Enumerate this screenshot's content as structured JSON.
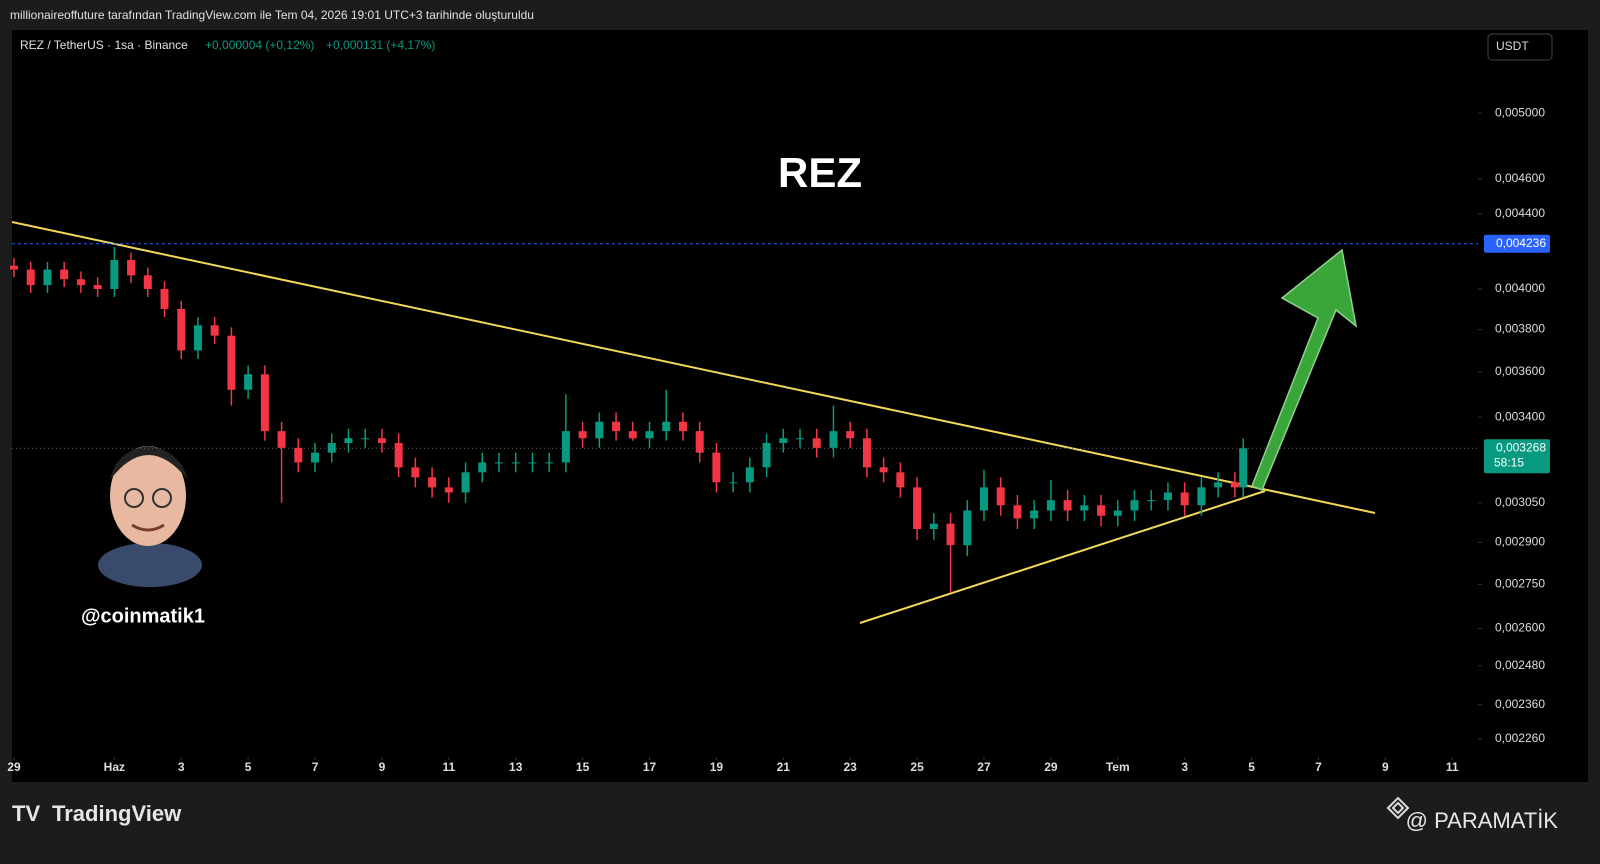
{
  "header": {
    "caption": "millionaireoffuture tarafından TradingView.com ile Tem 04, 2026 19:01 UTC+3 tarihinde oluşturuldu"
  },
  "footer": {
    "brand": "TradingView",
    "watermark": "@ PARAMATİK"
  },
  "chart_data": {
    "type": "candlestick",
    "symbol": "REZ / TetherUS · 1sa · Binance",
    "change_1": "+0,000004 (+0,12%)",
    "change_2": "+0,000131 (+4,17%)",
    "currency": "USDT",
    "title": "REZ",
    "author": "@coinmatik1",
    "log_scale": true,
    "up_color": "#089981",
    "down_color": "#f23645",
    "x": [
      0,
      0.5,
      1,
      1.5,
      2,
      2.5,
      3,
      3.5,
      4,
      4.5,
      5,
      5.5,
      6,
      6.5,
      7,
      7.5,
      8,
      8.5,
      9,
      9.5,
      10,
      10.5,
      11,
      11.5,
      12,
      12.5,
      13,
      13.5,
      14,
      14.5,
      15,
      15.5,
      16,
      16.5,
      17,
      17.5,
      18,
      18.5,
      19,
      19.5,
      20,
      20.5,
      21,
      21.5,
      22,
      22.5,
      23,
      23.5,
      24,
      24.5,
      25,
      25.5,
      26,
      26.5,
      27,
      27.5,
      28,
      28.5,
      29,
      29.5,
      30,
      30.5,
      31,
      31.5,
      32,
      32.5,
      33,
      33.5,
      34,
      34.5,
      35,
      35.5,
      36,
      36.5,
      36.75
    ],
    "open": [
      0.00412,
      0.0041,
      0.00402,
      0.0041,
      0.00405,
      0.00402,
      0.004,
      0.00415,
      0.00407,
      0.004,
      0.0039,
      0.0037,
      0.00382,
      0.00377,
      0.00352,
      0.00359,
      0.00334,
      0.00327,
      0.00321,
      0.00325,
      0.00329,
      0.00331,
      0.00331,
      0.00329,
      0.00319,
      0.00315,
      0.00311,
      0.00309,
      0.00317,
      0.00321,
      0.00321,
      0.00321,
      0.00321,
      0.00321,
      0.00334,
      0.00331,
      0.00338,
      0.00334,
      0.00331,
      0.00334,
      0.00338,
      0.00334,
      0.00325,
      0.00313,
      0.00313,
      0.00319,
      0.00329,
      0.00331,
      0.00331,
      0.00327,
      0.00334,
      0.00331,
      0.00319,
      0.00317,
      0.00311,
      0.00295,
      0.00297,
      0.00289,
      0.00302,
      0.00311,
      0.00304,
      0.00299,
      0.00302,
      0.00306,
      0.00302,
      0.00304,
      0.003,
      0.00302,
      0.00306,
      0.00306,
      0.00309,
      0.00304,
      0.00311,
      0.00313,
      0.00311
    ],
    "high": [
      0.00416,
      0.00414,
      0.00414,
      0.00414,
      0.00409,
      0.00406,
      0.00422,
      0.00419,
      0.00411,
      0.00404,
      0.00394,
      0.00386,
      0.00386,
      0.00381,
      0.00363,
      0.00363,
      0.00338,
      0.00331,
      0.00329,
      0.00333,
      0.00335,
      0.00335,
      0.00335,
      0.00333,
      0.00323,
      0.00319,
      0.00315,
      0.00321,
      0.00325,
      0.00325,
      0.00325,
      0.00325,
      0.00325,
      0.0035,
      0.00338,
      0.00342,
      0.00342,
      0.00338,
      0.00338,
      0.00352,
      0.00342,
      0.00338,
      0.00329,
      0.00317,
      0.00323,
      0.00333,
      0.00335,
      0.00335,
      0.00335,
      0.00345,
      0.00338,
      0.00335,
      0.00323,
      0.00321,
      0.00315,
      0.00301,
      0.00301,
      0.00306,
      0.00318,
      0.00315,
      0.00308,
      0.00306,
      0.00314,
      0.0031,
      0.00308,
      0.00308,
      0.00306,
      0.0031,
      0.0031,
      0.00313,
      0.00313,
      0.00315,
      0.00317,
      0.00317,
      0.00331
    ],
    "low": [
      0.00406,
      0.00398,
      0.00398,
      0.00401,
      0.00398,
      0.00396,
      0.00396,
      0.00403,
      0.00396,
      0.00386,
      0.00366,
      0.00366,
      0.00373,
      0.00345,
      0.00348,
      0.0033,
      0.00305,
      0.00317,
      0.00317,
      0.00321,
      0.00325,
      0.00327,
      0.00325,
      0.00315,
      0.00311,
      0.00307,
      0.00305,
      0.00305,
      0.00313,
      0.00317,
      0.00317,
      0.00317,
      0.00317,
      0.00317,
      0.00327,
      0.00327,
      0.0033,
      0.0033,
      0.00327,
      0.0033,
      0.0033,
      0.00321,
      0.00309,
      0.00309,
      0.00309,
      0.00315,
      0.00325,
      0.00327,
      0.00323,
      0.00323,
      0.00327,
      0.00315,
      0.00313,
      0.00307,
      0.00291,
      0.00291,
      0.00272,
      0.00285,
      0.00298,
      0.003,
      0.00295,
      0.00295,
      0.00298,
      0.00298,
      0.00298,
      0.00296,
      0.00296,
      0.00298,
      0.00302,
      0.00302,
      0.003,
      0.003,
      0.00307,
      0.00307,
      0.00307
    ],
    "close": [
      0.0041,
      0.00402,
      0.0041,
      0.00405,
      0.00402,
      0.004,
      0.00415,
      0.00407,
      0.004,
      0.0039,
      0.0037,
      0.00382,
      0.00377,
      0.00352,
      0.00359,
      0.00334,
      0.00327,
      0.00321,
      0.00325,
      0.00329,
      0.00331,
      0.00331,
      0.00329,
      0.00319,
      0.00315,
      0.00311,
      0.00309,
      0.00317,
      0.00321,
      0.00321,
      0.00321,
      0.00321,
      0.00321,
      0.00334,
      0.00331,
      0.00338,
      0.00334,
      0.00331,
      0.00334,
      0.00338,
      0.00334,
      0.00325,
      0.00313,
      0.00313,
      0.00319,
      0.00329,
      0.00331,
      0.00331,
      0.00327,
      0.00334,
      0.00331,
      0.00319,
      0.00317,
      0.00311,
      0.00295,
      0.00297,
      0.00289,
      0.00302,
      0.00311,
      0.00304,
      0.00299,
      0.00302,
      0.00306,
      0.00302,
      0.00304,
      0.003,
      0.00302,
      0.00306,
      0.00306,
      0.00309,
      0.00304,
      0.00311,
      0.00313,
      0.00311,
      0.003268
    ],
    "xlim": [
      -0.06,
      43.77
    ],
    "xticks": [
      {
        "value": 0,
        "label": "29"
      },
      {
        "value": 3,
        "label": "Haz"
      },
      {
        "value": 5,
        "label": "3"
      },
      {
        "value": 7,
        "label": "5"
      },
      {
        "value": 9,
        "label": "7"
      },
      {
        "value": 11,
        "label": "9"
      },
      {
        "value": 13,
        "label": "11"
      },
      {
        "value": 15,
        "label": "13"
      },
      {
        "value": 17,
        "label": "15"
      },
      {
        "value": 19,
        "label": "17"
      },
      {
        "value": 21,
        "label": "19"
      },
      {
        "value": 23,
        "label": "21"
      },
      {
        "value": 25,
        "label": "23"
      },
      {
        "value": 27,
        "label": "25"
      },
      {
        "value": 29,
        "label": "27"
      },
      {
        "value": 31,
        "label": "29"
      },
      {
        "value": 33,
        "label": "Tem"
      },
      {
        "value": 35,
        "label": "3"
      },
      {
        "value": 37,
        "label": "5"
      },
      {
        "value": 39,
        "label": "7"
      },
      {
        "value": 41,
        "label": "9"
      },
      {
        "value": 43,
        "label": "11"
      }
    ],
    "ylim": [
      0.002209,
      0.005556
    ],
    "yticks": [
      {
        "value": 0.005,
        "label": "0,005000"
      },
      {
        "value": 0.0046,
        "label": "0,004600"
      },
      {
        "value": 0.0044,
        "label": "0,004400"
      },
      {
        "value": 0.004,
        "label": "0,004000"
      },
      {
        "value": 0.0038,
        "label": "0,003800"
      },
      {
        "value": 0.0036,
        "label": "0,003600"
      },
      {
        "value": 0.0034,
        "label": "0,003400"
      },
      {
        "value": 0.00305,
        "label": "0,003050"
      },
      {
        "value": 0.0029,
        "label": "0,002900"
      },
      {
        "value": 0.00275,
        "label": "0,002750"
      },
      {
        "value": 0.0026,
        "label": "0,002600"
      },
      {
        "value": 0.00248,
        "label": "0,002480"
      },
      {
        "value": 0.00236,
        "label": "0,002360"
      },
      {
        "value": 0.00226,
        "label": "0,002260"
      }
    ],
    "price_line": {
      "value": 0.004236,
      "label": "0,004236",
      "color": "#2962ff"
    },
    "last_price": {
      "value": 0.003268,
      "label": "0,003268",
      "countdown": "58:15"
    }
  }
}
